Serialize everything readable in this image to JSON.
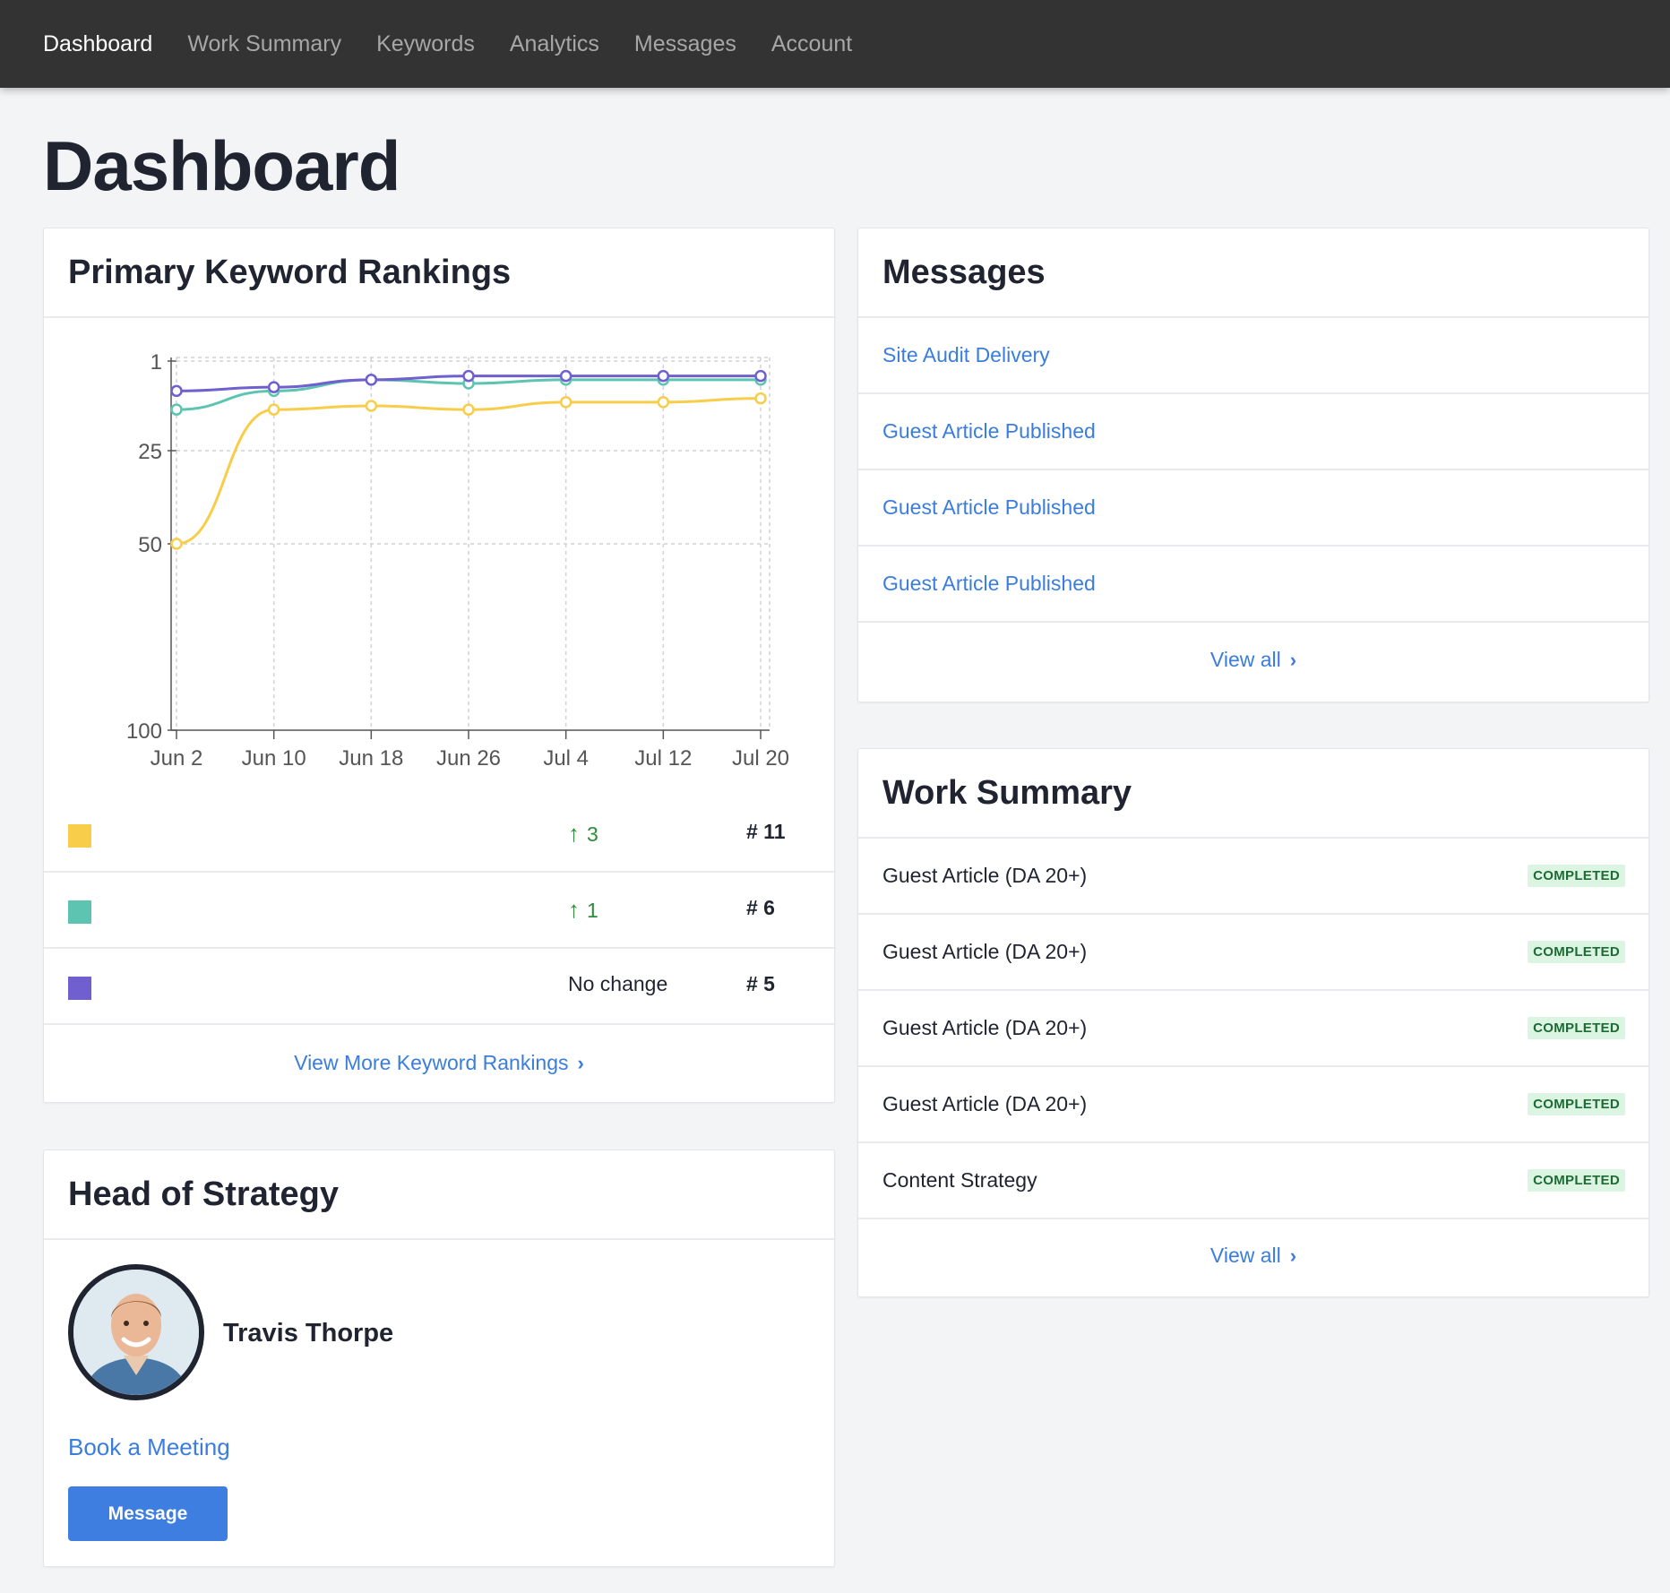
{
  "nav": {
    "items": [
      "Dashboard",
      "Work Summary",
      "Keywords",
      "Analytics",
      "Messages",
      "Account"
    ],
    "active": "Dashboard"
  },
  "page": {
    "title": "Dashboard"
  },
  "keyword_card": {
    "title": "Primary Keyword Rankings",
    "rows": [
      {
        "color": "#f7cd4a",
        "name": "",
        "change": "3",
        "change_dir": "up",
        "rank": "# 11"
      },
      {
        "color": "#5cc4b1",
        "name": "",
        "change": "1",
        "change_dir": "up",
        "rank": "# 6"
      },
      {
        "color": "#6f5fcf",
        "name": "",
        "change": "No change",
        "change_dir": "none",
        "rank": "# 5"
      }
    ],
    "footer_link": "View More Keyword Rankings"
  },
  "chart_data": {
    "type": "line",
    "categories": [
      "Jun 2",
      "Jun 10",
      "Jun 18",
      "Jun 26",
      "Jul 4",
      "Jul 12",
      "Jul 20"
    ],
    "y_ticks": [
      "1",
      "25",
      "50",
      "100"
    ],
    "y_tick_values": [
      1,
      25,
      50,
      100
    ],
    "y_reversed": true,
    "ylim": [
      1,
      100
    ],
    "grid": true,
    "series": [
      {
        "color": "#6f5fcf",
        "values": [
          9,
          8,
          6,
          5,
          5,
          5,
          5
        ]
      },
      {
        "color": "#5cc4b1",
        "values": [
          14,
          9,
          6,
          7,
          6,
          6,
          6
        ]
      },
      {
        "color": "#f7cd4a",
        "values": [
          50,
          14,
          13,
          14,
          12,
          12,
          11
        ]
      }
    ]
  },
  "head_of_strategy": {
    "title": "Head of Strategy",
    "name": "Travis Thorpe",
    "book_link": "Book a Meeting",
    "message_button": "Message"
  },
  "messages": {
    "title": "Messages",
    "items": [
      "Site Audit Delivery",
      "Guest Article Published",
      "Guest Article Published",
      "Guest Article Published"
    ],
    "view_all": "View all"
  },
  "work_summary": {
    "title": "Work Summary",
    "items": [
      {
        "label": "Guest Article (DA 20+)",
        "status": "COMPLETED"
      },
      {
        "label": "Guest Article (DA 20+)",
        "status": "COMPLETED"
      },
      {
        "label": "Guest Article (DA 20+)",
        "status": "COMPLETED"
      },
      {
        "label": "Guest Article (DA 20+)",
        "status": "COMPLETED"
      },
      {
        "label": "Content Strategy",
        "status": "COMPLETED"
      }
    ],
    "view_all": "View all"
  },
  "icons": {
    "chevron": "chevron-right-icon",
    "arrow_up": "arrow-up-icon"
  }
}
